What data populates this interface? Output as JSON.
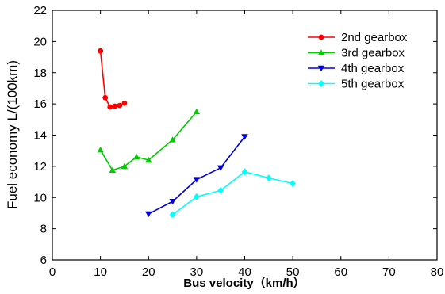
{
  "chart_data": {
    "type": "line",
    "xlabel": "Bus velocity（km/h）",
    "ylabel": "Fuel economy L/(100km)",
    "xlim": [
      0,
      80
    ],
    "ylim": [
      6,
      22
    ],
    "xticks": [
      0,
      10,
      20,
      30,
      40,
      50,
      60,
      70,
      80
    ],
    "yticks": [
      6,
      8,
      10,
      12,
      14,
      16,
      18,
      20,
      22
    ],
    "grid": false,
    "legend_position": "top-right",
    "series": [
      {
        "name": "2nd gearbox",
        "color": "#ff0000",
        "marker": "circle",
        "x": [
          10,
          11,
          12,
          13,
          14,
          15
        ],
        "y": [
          19.4,
          16.4,
          15.8,
          15.85,
          15.9,
          16.05
        ]
      },
      {
        "name": "3rd gearbox",
        "color": "#00cc00",
        "marker": "triangle-up",
        "x": [
          10,
          12.5,
          15,
          17.5,
          20,
          25,
          30
        ],
        "y": [
          13.05,
          11.75,
          12.0,
          12.6,
          12.4,
          13.7,
          15.5
        ]
      },
      {
        "name": "4th gearbox",
        "color": "#0000dd",
        "marker": "triangle-down",
        "x": [
          20,
          25,
          30,
          35,
          40
        ],
        "y": [
          8.95,
          9.75,
          11.15,
          11.9,
          13.9
        ]
      },
      {
        "name": "5th gearbox",
        "color": "#00ffff",
        "marker": "diamond",
        "x": [
          25,
          30,
          35,
          40,
          45,
          50
        ],
        "y": [
          8.9,
          10.05,
          10.45,
          11.65,
          11.25,
          10.9
        ]
      }
    ]
  }
}
